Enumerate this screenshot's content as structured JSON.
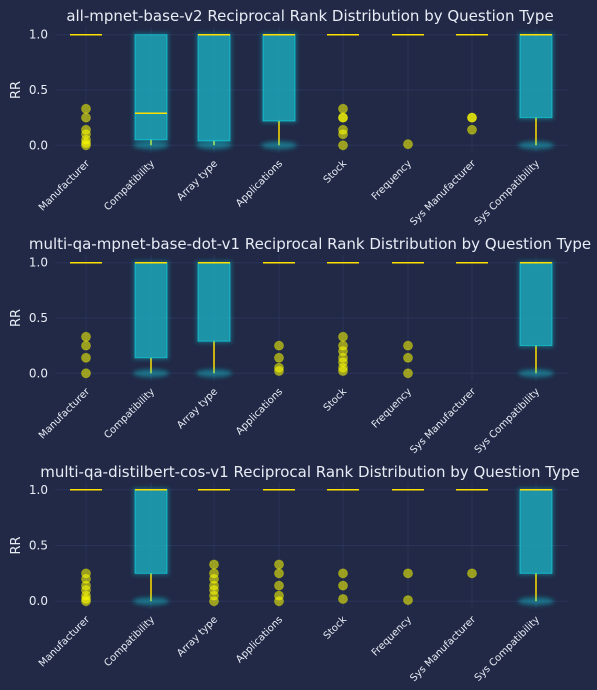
{
  "chart_data": [
    {
      "type": "box",
      "title": "all-mpnet-base-v2 Reciprocal Rank Distribution by Question Type",
      "ylabel": "RR",
      "xlabel": "",
      "ylim": [
        -0.07,
        1.07
      ],
      "yticks": [
        "0.0",
        "0.5",
        "1.0"
      ],
      "grid": true,
      "categories": [
        "Manufacturer",
        "Compatibility",
        "Array type",
        "Applications",
        "Stock",
        "Frequency",
        "Sys Manufacturer",
        "Sys Compatibility"
      ],
      "boxes": [
        {
          "q1": 1.0,
          "median": 1.0,
          "q3": 1.0,
          "whisker_low": 1.0,
          "whisker_high": 1.0,
          "outliers": [
            0.0,
            0.02,
            0.05,
            0.1,
            0.14,
            0.25,
            0.33
          ]
        },
        {
          "q1": 0.05,
          "median": 0.29,
          "q3": 1.0,
          "whisker_low": 0.0,
          "whisker_high": 1.0,
          "outliers": []
        },
        {
          "q1": 0.04,
          "median": 1.0,
          "q3": 1.0,
          "whisker_low": 0.0,
          "whisker_high": 1.0,
          "outliers": []
        },
        {
          "q1": 0.22,
          "median": 1.0,
          "q3": 1.0,
          "whisker_low": 0.0,
          "whisker_high": 1.0,
          "outliers": []
        },
        {
          "q1": 1.0,
          "median": 1.0,
          "q3": 1.0,
          "whisker_low": 1.0,
          "whisker_high": 1.0,
          "outliers": [
            0.0,
            0.1,
            0.14,
            0.25,
            0.25,
            0.33
          ]
        },
        {
          "q1": 1.0,
          "median": 1.0,
          "q3": 1.0,
          "whisker_low": 1.0,
          "whisker_high": 1.0,
          "outliers": [
            0.01
          ]
        },
        {
          "q1": 1.0,
          "median": 1.0,
          "q3": 1.0,
          "whisker_low": 1.0,
          "whisker_high": 1.0,
          "outliers": [
            0.14,
            0.25,
            0.25
          ]
        },
        {
          "q1": 0.25,
          "median": 1.0,
          "q3": 1.0,
          "whisker_low": 0.0,
          "whisker_high": 1.0,
          "outliers": []
        }
      ]
    },
    {
      "type": "box",
      "title": "multi-qa-mpnet-base-dot-v1 Reciprocal Rank Distribution by Question Type",
      "ylabel": "RR",
      "xlabel": "",
      "ylim": [
        -0.07,
        1.07
      ],
      "yticks": [
        "0.0",
        "0.5",
        "1.0"
      ],
      "grid": true,
      "categories": [
        "Manufacturer",
        "Compatibility",
        "Array type",
        "Applications",
        "Stock",
        "Frequency",
        "Sys Manufacturer",
        "Sys Compatibility"
      ],
      "boxes": [
        {
          "q1": 1.0,
          "median": 1.0,
          "q3": 1.0,
          "whisker_low": 1.0,
          "whisker_high": 1.0,
          "outliers": [
            0.0,
            0.14,
            0.25,
            0.33
          ]
        },
        {
          "q1": 0.14,
          "median": 1.0,
          "q3": 1.0,
          "whisker_low": 0.0,
          "whisker_high": 1.0,
          "outliers": []
        },
        {
          "q1": 0.29,
          "median": 1.0,
          "q3": 1.0,
          "whisker_low": 0.0,
          "whisker_high": 1.0,
          "outliers": []
        },
        {
          "q1": 1.0,
          "median": 1.0,
          "q3": 1.0,
          "whisker_low": 1.0,
          "whisker_high": 1.0,
          "outliers": [
            0.02,
            0.05,
            0.14,
            0.25
          ]
        },
        {
          "q1": 1.0,
          "median": 1.0,
          "q3": 1.0,
          "whisker_low": 1.0,
          "whisker_high": 1.0,
          "outliers": [
            0.02,
            0.05,
            0.1,
            0.14,
            0.2,
            0.25,
            0.33
          ]
        },
        {
          "q1": 1.0,
          "median": 1.0,
          "q3": 1.0,
          "whisker_low": 1.0,
          "whisker_high": 1.0,
          "outliers": [
            0.0,
            0.14,
            0.25
          ]
        },
        {
          "q1": 1.0,
          "median": 1.0,
          "q3": 1.0,
          "whisker_low": 1.0,
          "whisker_high": 1.0,
          "outliers": []
        },
        {
          "q1": 0.25,
          "median": 1.0,
          "q3": 1.0,
          "whisker_low": 0.0,
          "whisker_high": 1.0,
          "outliers": []
        }
      ]
    },
    {
      "type": "box",
      "title": "multi-qa-distilbert-cos-v1 Reciprocal Rank Distribution by Question Type",
      "ylabel": "RR",
      "xlabel": "",
      "ylim": [
        -0.07,
        1.07
      ],
      "yticks": [
        "0.0",
        "0.5",
        "1.0"
      ],
      "grid": true,
      "categories": [
        "Manufacturer",
        "Compatibility",
        "Array type",
        "Applications",
        "Stock",
        "Frequency",
        "Sys Manufacturer",
        "Sys Compatibility"
      ],
      "boxes": [
        {
          "q1": 1.0,
          "median": 1.0,
          "q3": 1.0,
          "whisker_low": 1.0,
          "whisker_high": 1.0,
          "outliers": [
            0.0,
            0.02,
            0.05,
            0.1,
            0.14,
            0.2,
            0.25
          ]
        },
        {
          "q1": 0.25,
          "median": 1.0,
          "q3": 1.0,
          "whisker_low": 0.0,
          "whisker_high": 1.0,
          "outliers": []
        },
        {
          "q1": 1.0,
          "median": 1.0,
          "q3": 1.0,
          "whisker_low": 1.0,
          "whisker_high": 1.0,
          "outliers": [
            0.0,
            0.05,
            0.1,
            0.14,
            0.2,
            0.25,
            0.33
          ]
        },
        {
          "q1": 1.0,
          "median": 1.0,
          "q3": 1.0,
          "whisker_low": 1.0,
          "whisker_high": 1.0,
          "outliers": [
            0.0,
            0.05,
            0.14,
            0.25,
            0.33
          ]
        },
        {
          "q1": 1.0,
          "median": 1.0,
          "q3": 1.0,
          "whisker_low": 1.0,
          "whisker_high": 1.0,
          "outliers": [
            0.02,
            0.14,
            0.25
          ]
        },
        {
          "q1": 1.0,
          "median": 1.0,
          "q3": 1.0,
          "whisker_low": 1.0,
          "whisker_high": 1.0,
          "outliers": [
            0.01,
            0.25
          ]
        },
        {
          "q1": 1.0,
          "median": 1.0,
          "q3": 1.0,
          "whisker_low": 1.0,
          "whisker_high": 1.0,
          "outliers": [
            0.25
          ]
        },
        {
          "q1": 0.25,
          "median": 1.0,
          "q3": 1.0,
          "whisker_low": 0.0,
          "whisker_high": 1.0,
          "outliers": []
        }
      ]
    }
  ],
  "colors": {
    "background": "#212946",
    "grid": "#2A3459",
    "box_fill": "#1fb7c9",
    "box_glow": "#08F7FE",
    "median": "#FFE000",
    "whisker": "#FFE000",
    "outlier": "#FFFF00",
    "text": "#e8ecf5"
  }
}
